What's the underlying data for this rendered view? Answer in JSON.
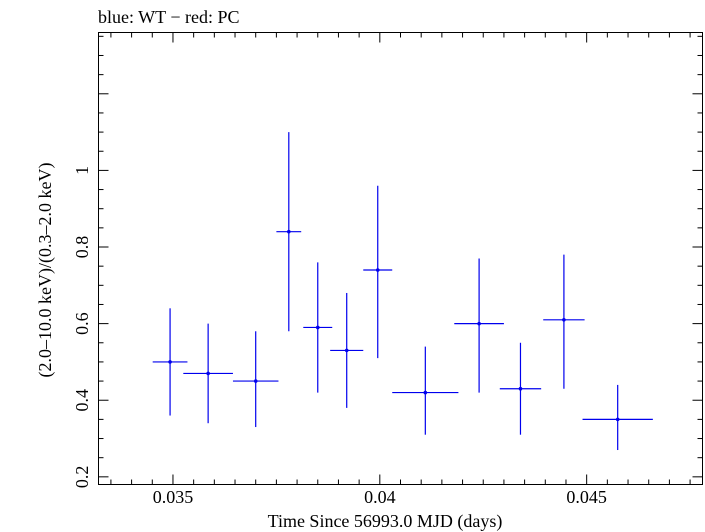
{
  "chart_data": {
    "type": "scatter",
    "title": "blue: WT − red: PC",
    "xlabel": "Time Since 56993.0 MJD (days)",
    "ylabel": "(2.0–10.0 keV)/(0.3–2.0 keV)",
    "xlim": [
      0.0332,
      0.0478
    ],
    "ylim": [
      0.18,
      1.36
    ],
    "xticks": [
      0.035,
      0.04,
      0.045
    ],
    "xtick_labels": [
      "0.035",
      "0.04",
      "0.045"
    ],
    "yticks": [
      0.2,
      0.4,
      0.6,
      0.8,
      1.0
    ],
    "ytick_labels": [
      "0.2",
      "0.4",
      "0.6",
      "0.8",
      "1"
    ],
    "series": [
      {
        "name": "WT",
        "color": "#0000ee",
        "points": [
          {
            "x": 0.03493,
            "y": 0.5,
            "xerr": 0.00042,
            "ylo": 0.36,
            "yhi": 0.64
          },
          {
            "x": 0.03585,
            "y": 0.47,
            "xerr": 0.0006,
            "ylo": 0.34,
            "yhi": 0.6
          },
          {
            "x": 0.037,
            "y": 0.45,
            "xerr": 0.00055,
            "ylo": 0.33,
            "yhi": 0.58
          },
          {
            "x": 0.0378,
            "y": 0.84,
            "xerr": 0.0003,
            "ylo": 0.58,
            "yhi": 1.1
          },
          {
            "x": 0.0385,
            "y": 0.59,
            "xerr": 0.00035,
            "ylo": 0.42,
            "yhi": 0.76
          },
          {
            "x": 0.0392,
            "y": 0.53,
            "xerr": 0.0004,
            "ylo": 0.38,
            "yhi": 0.68
          },
          {
            "x": 0.03995,
            "y": 0.74,
            "xerr": 0.00035,
            "ylo": 0.51,
            "yhi": 0.96
          },
          {
            "x": 0.0411,
            "y": 0.42,
            "xerr": 0.0008,
            "ylo": 0.31,
            "yhi": 0.54
          },
          {
            "x": 0.0424,
            "y": 0.6,
            "xerr": 0.0006,
            "ylo": 0.42,
            "yhi": 0.77
          },
          {
            "x": 0.0434,
            "y": 0.43,
            "xerr": 0.0005,
            "ylo": 0.31,
            "yhi": 0.55
          },
          {
            "x": 0.04445,
            "y": 0.61,
            "xerr": 0.0005,
            "ylo": 0.43,
            "yhi": 0.78
          },
          {
            "x": 0.04575,
            "y": 0.35,
            "xerr": 0.00085,
            "ylo": 0.27,
            "yhi": 0.44
          }
        ]
      }
    ],
    "grid": false,
    "legend": "none"
  }
}
